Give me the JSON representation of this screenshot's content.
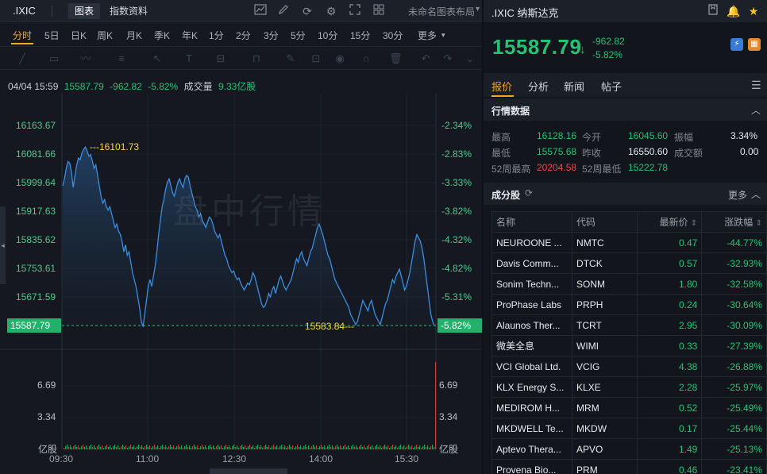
{
  "topbar": {
    "symbol": ".IXIC",
    "tab_chart": "图表",
    "tab_info": "指数资料",
    "layout_label": "未命名图表布局",
    "icons": [
      "chart-type-icon",
      "draw-icon",
      "refresh-icon",
      "settings-icon",
      "fullscreen-icon",
      "grid-layout-icon"
    ]
  },
  "periods": [
    "分时",
    "5日",
    "日K",
    "周K",
    "月K",
    "季K",
    "年K",
    "1分",
    "2分",
    "3分",
    "5分",
    "10分",
    "15分",
    "30分",
    "更多"
  ],
  "active_period": "分时",
  "quote_line": {
    "datetime": "04/04 15:59",
    "price": "15587.79",
    "change": "-962.82",
    "pct": "-5.82%",
    "vol_label": "成交量",
    "vol_value": "9.33亿股"
  },
  "watermark": "盘中行情",
  "price_axis": [
    "16163.67",
    "16081.66",
    "15999.64",
    "15917.63",
    "15835.62",
    "15753.61",
    "15671.59"
  ],
  "pct_axis": [
    "-2.34%",
    "-2.83%",
    "-3.33%",
    "-3.82%",
    "-4.32%",
    "-4.82%",
    "-5.31%"
  ],
  "current_price_tag": "15587.79",
  "current_pct_tag": "-5.82%",
  "high_annotation": "16101.73",
  "low_annotation": "15583.84",
  "volume_axis_left": [
    "6.69",
    "3.34",
    "亿股"
  ],
  "volume_axis_right": [
    "6.69",
    "3.34",
    "亿股"
  ],
  "time_axis": [
    "09:30",
    "11:00",
    "12:30",
    "14:00",
    "15:30"
  ],
  "chart_data": {
    "type": "line",
    "x_labels": [
      "09:30",
      "11:00",
      "12:30",
      "14:00",
      "15:30"
    ],
    "ylim": [
      15587.79,
      16163.67
    ],
    "high": 16101.73,
    "low": 15583.84,
    "series": [
      {
        "values": [
          15990,
          16010,
          16040,
          16060,
          16055,
          16030,
          15985,
          16020,
          16050,
          16070,
          16065,
          16085,
          16095,
          16101.73,
          16090,
          16075,
          16080,
          16060,
          16040,
          16050,
          16020,
          15990,
          15960,
          15940,
          15950,
          15930,
          15920,
          15930,
          15910,
          15890,
          15870,
          15880,
          15860,
          15850,
          15830,
          15800,
          15820,
          15790,
          15800,
          15770,
          15740,
          15720,
          15700,
          15670,
          15640,
          15600,
          15583.84,
          15620,
          15660,
          15700,
          15720,
          15700,
          15730,
          15760,
          15800,
          15850,
          15890,
          15930,
          15950,
          15980,
          16000,
          16010,
          15990,
          15970,
          15960,
          15980,
          16000,
          16010,
          15995,
          15985,
          16010,
          16020,
          16015,
          15990,
          15970,
          15950,
          15930,
          15920,
          15900,
          15910,
          15890,
          15880,
          15870,
          15885,
          15900,
          15895,
          15880,
          15860,
          15850,
          15840,
          15850,
          15830,
          15810,
          15790,
          15780,
          15760,
          15750,
          15740,
          15745,
          15730,
          15720,
          15725,
          15710,
          15700,
          15690,
          15700,
          15710,
          15705,
          15720,
          15740,
          15730,
          15710,
          15690,
          15670,
          15650,
          15640,
          15645,
          15660,
          15680,
          15670,
          15690,
          15700,
          15680,
          15700,
          15720,
          15730,
          15715,
          15700,
          15690,
          15700,
          15710,
          15720,
          15740,
          15760,
          15780,
          15770,
          15790,
          15800,
          15780,
          15770,
          15760,
          15780,
          15800,
          15810,
          15830,
          15850,
          15870,
          15880,
          15865,
          15850,
          15830,
          15810,
          15790,
          15780,
          15760,
          15740,
          15720,
          15710,
          15700,
          15690,
          15680,
          15670,
          15660,
          15650,
          15640,
          15620,
          15610,
          15600,
          15590,
          15600,
          15620,
          15640,
          15660,
          15650,
          15640,
          15630,
          15650,
          15660,
          15640,
          15620,
          15610,
          15600,
          15590,
          15610,
          15630,
          15650,
          15660,
          15680,
          15700,
          15720,
          15710,
          15730,
          15740,
          15750,
          15730,
          15710,
          15690,
          15700,
          15720,
          15740,
          15770,
          15800,
          15830,
          15850,
          15840,
          15830,
          15810,
          15780,
          15740,
          15700,
          15660,
          15620,
          15600,
          15587.79
        ]
      }
    ],
    "volume_max": 6.69,
    "volume_unit": "亿股"
  },
  "right": {
    "title": ".IXIC 纳斯达克",
    "price": "15587.79",
    "arrow": "↓",
    "change": "-962.82",
    "pct": "-5.82%",
    "tabs": [
      "报价",
      "分析",
      "新闻",
      "帖子"
    ],
    "active_tab": "报价",
    "section_quote": "行情数据",
    "stats": {
      "high_k": "最高",
      "high_v": "16128.16",
      "open_k": "今开",
      "open_v": "16045.60",
      "amp_k": "振幅",
      "amp_v": "3.34%",
      "low_k": "最低",
      "low_v": "15575.68",
      "prev_k": "昨收",
      "prev_v": "16550.60",
      "turn_k": "成交额",
      "turn_v": "0.00",
      "h52_k": "52周最高",
      "h52_v": "20204.58",
      "l52_k": "52周最低",
      "l52_v": "15222.78"
    },
    "section_comp": "成分股",
    "more": "更多",
    "table_headers": [
      "名称",
      "代码",
      "最新价",
      "涨跌幅"
    ],
    "rows": [
      {
        "name": "NEUROONE ...",
        "code": "NMTC",
        "price": "0.47",
        "pct": "-44.77%"
      },
      {
        "name": "Davis Comm...",
        "code": "DTCK",
        "price": "0.57",
        "pct": "-32.93%"
      },
      {
        "name": "Sonim Techn...",
        "code": "SONM",
        "price": "1.80",
        "pct": "-32.58%"
      },
      {
        "name": "ProPhase Labs",
        "code": "PRPH",
        "price": "0.24",
        "pct": "-30.64%"
      },
      {
        "name": "Alaunos Ther...",
        "code": "TCRT",
        "price": "2.95",
        "pct": "-30.09%"
      },
      {
        "name": "微美全息",
        "code": "WIMI",
        "price": "0.33",
        "pct": "-27.39%"
      },
      {
        "name": "VCI Global Ltd.",
        "code": "VCIG",
        "price": "4.38",
        "pct": "-26.88%"
      },
      {
        "name": "KLX Energy S...",
        "code": "KLXE",
        "price": "2.28",
        "pct": "-25.97%"
      },
      {
        "name": "MEDIROM H...",
        "code": "MRM",
        "price": "0.52",
        "pct": "-25.49%"
      },
      {
        "name": "MKDWELL Te...",
        "code": "MKDW",
        "price": "0.17",
        "pct": "-25.44%"
      },
      {
        "name": "Aptevo Thera...",
        "code": "APVO",
        "price": "1.49",
        "pct": "-25.13%"
      },
      {
        "name": "Provena Bio...",
        "code": "PRM",
        "price": "0.46",
        "pct": "-23.41%"
      }
    ]
  },
  "colors": {
    "down": "#25c274",
    "up": "#f0454a",
    "accent": "#f5a623",
    "line": "#3b8de0"
  }
}
